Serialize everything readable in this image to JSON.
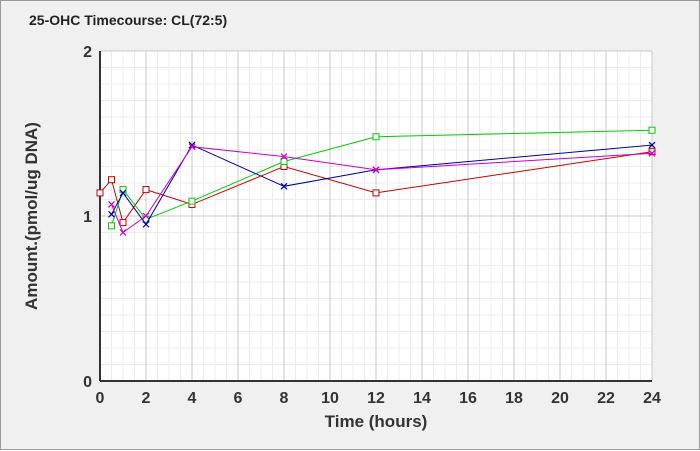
{
  "chart_data": {
    "type": "line",
    "title": "25-OHC Timecourse: CL(72:5)",
    "xlabel": "Time (hours)",
    "ylabel": "Amount.(pmol/ug DNA)",
    "xlim": [
      0,
      24
    ],
    "ylim": [
      0,
      2
    ],
    "x_ticks": [
      "0",
      "2",
      "4",
      "6",
      "8",
      "10",
      "12",
      "14",
      "16",
      "18",
      "20",
      "22",
      "24"
    ],
    "y_ticks": [
      "0",
      "1",
      "2"
    ],
    "grid": true,
    "legend": "none",
    "series": [
      {
        "color": "#cc0000",
        "marker": "square",
        "x": [
          0,
          0.5,
          1,
          2,
          4,
          8,
          12,
          24
        ],
        "y": [
          1.14,
          1.22,
          0.96,
          1.16,
          1.07,
          1.3,
          1.14,
          1.39
        ]
      },
      {
        "color": "#00cc00",
        "marker": "square",
        "x": [
          0.5,
          1,
          2,
          4,
          8,
          12,
          24
        ],
        "y": [
          0.94,
          1.16,
          0.98,
          1.09,
          1.33,
          1.48,
          1.52
        ]
      },
      {
        "color": "#0000aa",
        "marker": "x",
        "x": [
          0.5,
          1,
          2,
          4,
          8,
          12,
          24
        ],
        "y": [
          1.01,
          1.14,
          0.95,
          1.43,
          1.18,
          1.28,
          1.43
        ]
      },
      {
        "color": "#cc00cc",
        "marker": "x",
        "x": [
          0.5,
          1,
          2,
          4,
          8,
          12,
          24
        ],
        "y": [
          1.07,
          0.9,
          1.0,
          1.42,
          1.36,
          1.28,
          1.38
        ]
      }
    ]
  }
}
